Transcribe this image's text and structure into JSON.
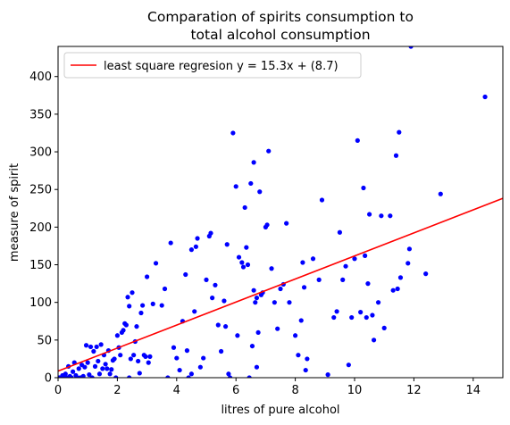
{
  "chart_data": {
    "type": "scatter",
    "title_lines": [
      "Comparation of spirits consumption to",
      "total alcohol consumption"
    ],
    "xlabel": "litres of pure alcohol",
    "ylabel": "measure of spirit",
    "xlim": [
      0,
      15
    ],
    "ylim": [
      0,
      440
    ],
    "xticks": [
      0,
      2,
      4,
      6,
      8,
      10,
      12,
      14
    ],
    "yticks": [
      0,
      50,
      100,
      150,
      200,
      250,
      300,
      350,
      400
    ],
    "grid": false,
    "legend_position": "top-left",
    "legend": [
      {
        "label": "least square regresion y = 15.3x + (8.7)",
        "color": "#ff0000",
        "kind": "line"
      }
    ],
    "regression": {
      "slope": 15.3,
      "intercept": 8.7,
      "color": "#ff0000"
    },
    "point_color": "#0000ff",
    "points": [
      [
        0.0,
        0
      ],
      [
        0.05,
        0
      ],
      [
        0.1,
        0
      ],
      [
        0.15,
        3
      ],
      [
        0.2,
        0
      ],
      [
        0.25,
        5
      ],
      [
        0.3,
        0
      ],
      [
        0.35,
        15
      ],
      [
        0.4,
        2
      ],
      [
        0.45,
        0
      ],
      [
        0.5,
        8
      ],
      [
        0.55,
        20
      ],
      [
        0.6,
        3
      ],
      [
        0.65,
        0
      ],
      [
        0.7,
        12
      ],
      [
        0.75,
        0
      ],
      [
        0.8,
        17
      ],
      [
        0.85,
        2
      ],
      [
        0.9,
        14
      ],
      [
        0.95,
        43
      ],
      [
        1.0,
        20
      ],
      [
        1.05,
        4
      ],
      [
        1.1,
        41
      ],
      [
        1.15,
        0
      ],
      [
        1.2,
        35
      ],
      [
        1.25,
        15
      ],
      [
        1.3,
        41
      ],
      [
        1.35,
        22
      ],
      [
        1.4,
        5
      ],
      [
        1.45,
        44
      ],
      [
        1.5,
        12
      ],
      [
        1.55,
        30
      ],
      [
        1.6,
        18
      ],
      [
        1.65,
        12
      ],
      [
        1.7,
        36
      ],
      [
        1.75,
        5
      ],
      [
        1.8,
        11
      ],
      [
        1.85,
        23
      ],
      [
        1.9,
        25
      ],
      [
        1.95,
        0
      ],
      [
        2.0,
        56
      ],
      [
        2.05,
        40
      ],
      [
        2.1,
        30
      ],
      [
        2.15,
        60
      ],
      [
        2.2,
        63
      ],
      [
        2.25,
        72
      ],
      [
        2.3,
        70
      ],
      [
        2.35,
        107
      ],
      [
        2.4,
        0
      ],
      [
        2.45,
        25
      ],
      [
        2.5,
        113
      ],
      [
        2.55,
        30
      ],
      [
        2.6,
        48
      ],
      [
        2.65,
        68
      ],
      [
        2.7,
        22
      ],
      [
        2.75,
        6
      ],
      [
        2.8,
        86
      ],
      [
        2.85,
        96
      ],
      [
        2.9,
        30
      ],
      [
        2.95,
        28
      ],
      [
        3.0,
        134
      ],
      [
        3.05,
        20
      ],
      [
        3.1,
        28
      ],
      [
        3.2,
        98
      ],
      [
        3.3,
        152
      ],
      [
        3.5,
        96
      ],
      [
        3.6,
        118
      ],
      [
        3.7,
        0
      ],
      [
        3.8,
        179
      ],
      [
        3.9,
        40
      ],
      [
        4.0,
        26
      ],
      [
        4.1,
        10
      ],
      [
        4.2,
        75
      ],
      [
        4.3,
        137
      ],
      [
        4.35,
        36
      ],
      [
        4.4,
        0
      ],
      [
        4.5,
        5
      ],
      [
        4.6,
        88
      ],
      [
        4.65,
        174
      ],
      [
        4.7,
        185
      ],
      [
        4.8,
        14
      ],
      [
        4.9,
        26
      ],
      [
        5.0,
        130
      ],
      [
        5.1,
        188
      ],
      [
        5.15,
        192
      ],
      [
        5.2,
        106
      ],
      [
        5.3,
        123
      ],
      [
        5.4,
        70
      ],
      [
        5.5,
        35
      ],
      [
        5.6,
        102
      ],
      [
        5.65,
        68
      ],
      [
        5.7,
        177
      ],
      [
        5.75,
        5
      ],
      [
        5.8,
        0
      ],
      [
        5.9,
        325
      ],
      [
        6.0,
        254
      ],
      [
        6.05,
        56
      ],
      [
        6.1,
        160
      ],
      [
        6.2,
        153
      ],
      [
        6.25,
        147
      ],
      [
        6.3,
        226
      ],
      [
        6.35,
        173
      ],
      [
        6.4,
        150
      ],
      [
        6.45,
        0
      ],
      [
        6.5,
        258
      ],
      [
        6.55,
        42
      ],
      [
        6.6,
        286
      ],
      [
        6.65,
        100
      ],
      [
        6.7,
        14
      ],
      [
        6.75,
        60
      ],
      [
        6.8,
        247
      ],
      [
        6.85,
        110
      ],
      [
        6.9,
        113
      ],
      [
        7.0,
        200
      ],
      [
        7.05,
        203
      ],
      [
        7.1,
        301
      ],
      [
        7.2,
        145
      ],
      [
        7.3,
        100
      ],
      [
        7.4,
        65
      ],
      [
        7.5,
        118
      ],
      [
        7.6,
        124
      ],
      [
        7.7,
        205
      ],
      [
        7.8,
        100
      ],
      [
        8.0,
        56
      ],
      [
        8.1,
        30
      ],
      [
        8.2,
        76
      ],
      [
        8.25,
        153
      ],
      [
        8.3,
        120
      ],
      [
        8.35,
        10
      ],
      [
        8.4,
        25
      ],
      [
        8.6,
        158
      ],
      [
        8.8,
        130
      ],
      [
        8.9,
        236
      ],
      [
        9.1,
        4
      ],
      [
        9.3,
        80
      ],
      [
        9.4,
        88
      ],
      [
        9.5,
        193
      ],
      [
        9.6,
        130
      ],
      [
        9.7,
        148
      ],
      [
        9.8,
        17
      ],
      [
        9.9,
        80
      ],
      [
        10.0,
        158
      ],
      [
        10.1,
        315
      ],
      [
        10.2,
        87
      ],
      [
        10.3,
        252
      ],
      [
        10.35,
        162
      ],
      [
        10.4,
        80
      ],
      [
        10.45,
        125
      ],
      [
        10.5,
        217
      ],
      [
        10.6,
        83
      ],
      [
        10.65,
        50
      ],
      [
        10.8,
        100
      ],
      [
        10.9,
        215
      ],
      [
        11.0,
        66
      ],
      [
        11.2,
        215
      ],
      [
        11.3,
        116
      ],
      [
        11.4,
        295
      ],
      [
        11.45,
        118
      ],
      [
        11.5,
        326
      ],
      [
        11.55,
        133
      ],
      [
        11.8,
        152
      ],
      [
        11.85,
        171
      ],
      [
        11.9,
        440
      ],
      [
        12.4,
        138
      ],
      [
        12.9,
        244
      ],
      [
        14.4,
        373
      ],
      [
        6.7,
        106
      ],
      [
        6.6,
        116
      ],
      [
        4.5,
        170
      ],
      [
        2.4,
        95
      ]
    ]
  }
}
